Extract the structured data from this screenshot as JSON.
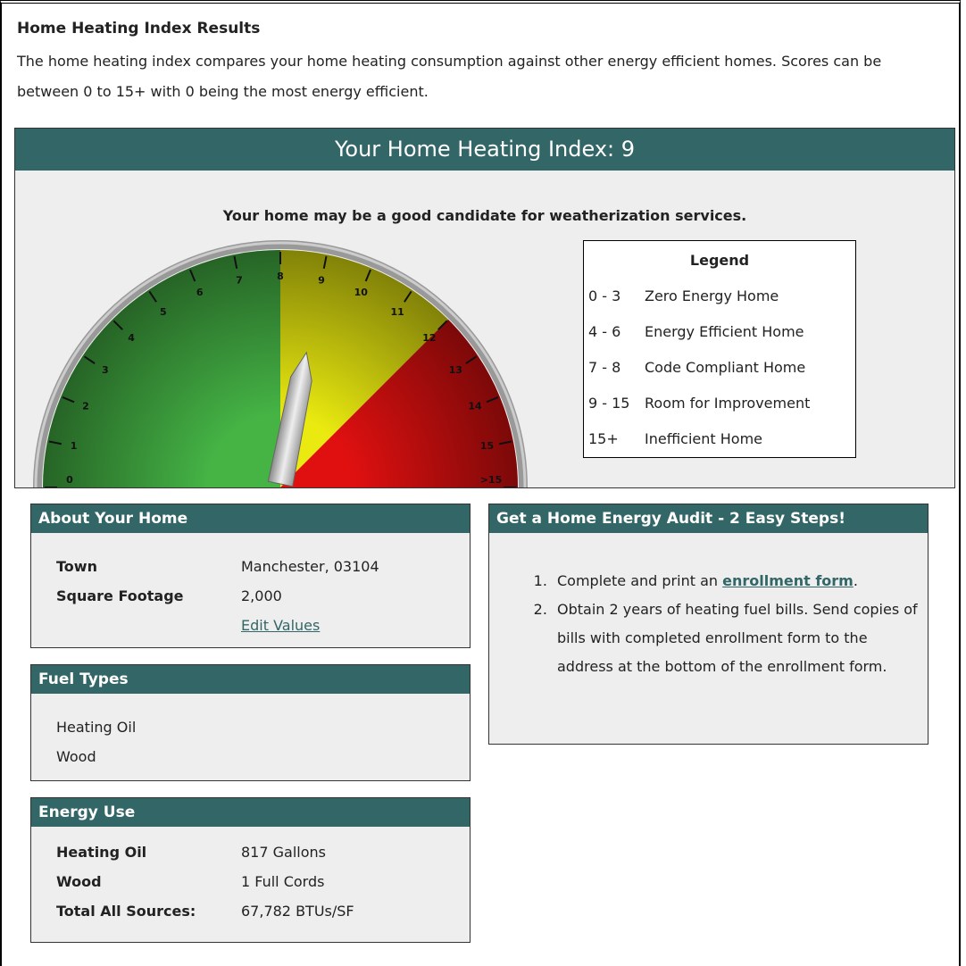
{
  "title": "Home Heating Index Results",
  "intro": "The home heating index compares your home heating consumption against other energy efficient homes. Scores can be between 0 to 15+ with 0 being the most energy efficient.",
  "header": {
    "label": "Your Home Heating Index:",
    "index": 9
  },
  "message": "Your home may be a good candidate for weatherization services.",
  "gauge": {
    "range": [
      0,
      16
    ],
    "ticks": [
      0,
      1,
      2,
      3,
      4,
      5,
      6,
      7,
      8,
      9,
      10,
      11,
      12,
      13,
      14,
      15,
      {
        "value": 16,
        "label": ">15"
      }
    ],
    "zones": [
      {
        "from": 0,
        "to": 8,
        "color": "#45b445"
      },
      {
        "from": 8,
        "to": 12,
        "color": "#eaea10"
      },
      {
        "from": 12,
        "to": 16,
        "color": "#e01010"
      }
    ]
  },
  "legend": {
    "title": "Legend",
    "items": [
      {
        "range": "0 - 3",
        "label": "Zero Energy Home"
      },
      {
        "range": "4 - 6",
        "label": "Energy Efficient Home"
      },
      {
        "range": "7 - 8",
        "label": "Code Compliant Home"
      },
      {
        "range": "9 - 15",
        "label": "Room for Improvement"
      },
      {
        "range": "15+",
        "label": "Inefficient Home"
      }
    ]
  },
  "about": {
    "title": "About Your Home",
    "rows": [
      [
        "Town",
        "Manchester, 03104"
      ],
      [
        "Square Footage",
        "2,000"
      ]
    ],
    "link": "Edit Values"
  },
  "fuel": {
    "title": "Fuel Types",
    "items": [
      "Heating Oil",
      "Wood"
    ]
  },
  "energy": {
    "title": "Energy Use",
    "rows": [
      [
        "Heating Oil",
        "817 Gallons"
      ],
      [
        "Wood",
        "1 Full Cords"
      ],
      [
        "Total All Sources:",
        "67,782 BTUs/SF"
      ]
    ]
  },
  "audit": {
    "title": "Get a Home Energy Audit - 2 Easy Steps!",
    "steps": [
      {
        "text": "Complete and print an ",
        "link": "enrollment form",
        "after": "."
      },
      {
        "text": "Obtain 2 years of heating fuel bills. Send copies of bills with completed enrollment form to the address at the bottom of the enrollment form."
      }
    ]
  }
}
